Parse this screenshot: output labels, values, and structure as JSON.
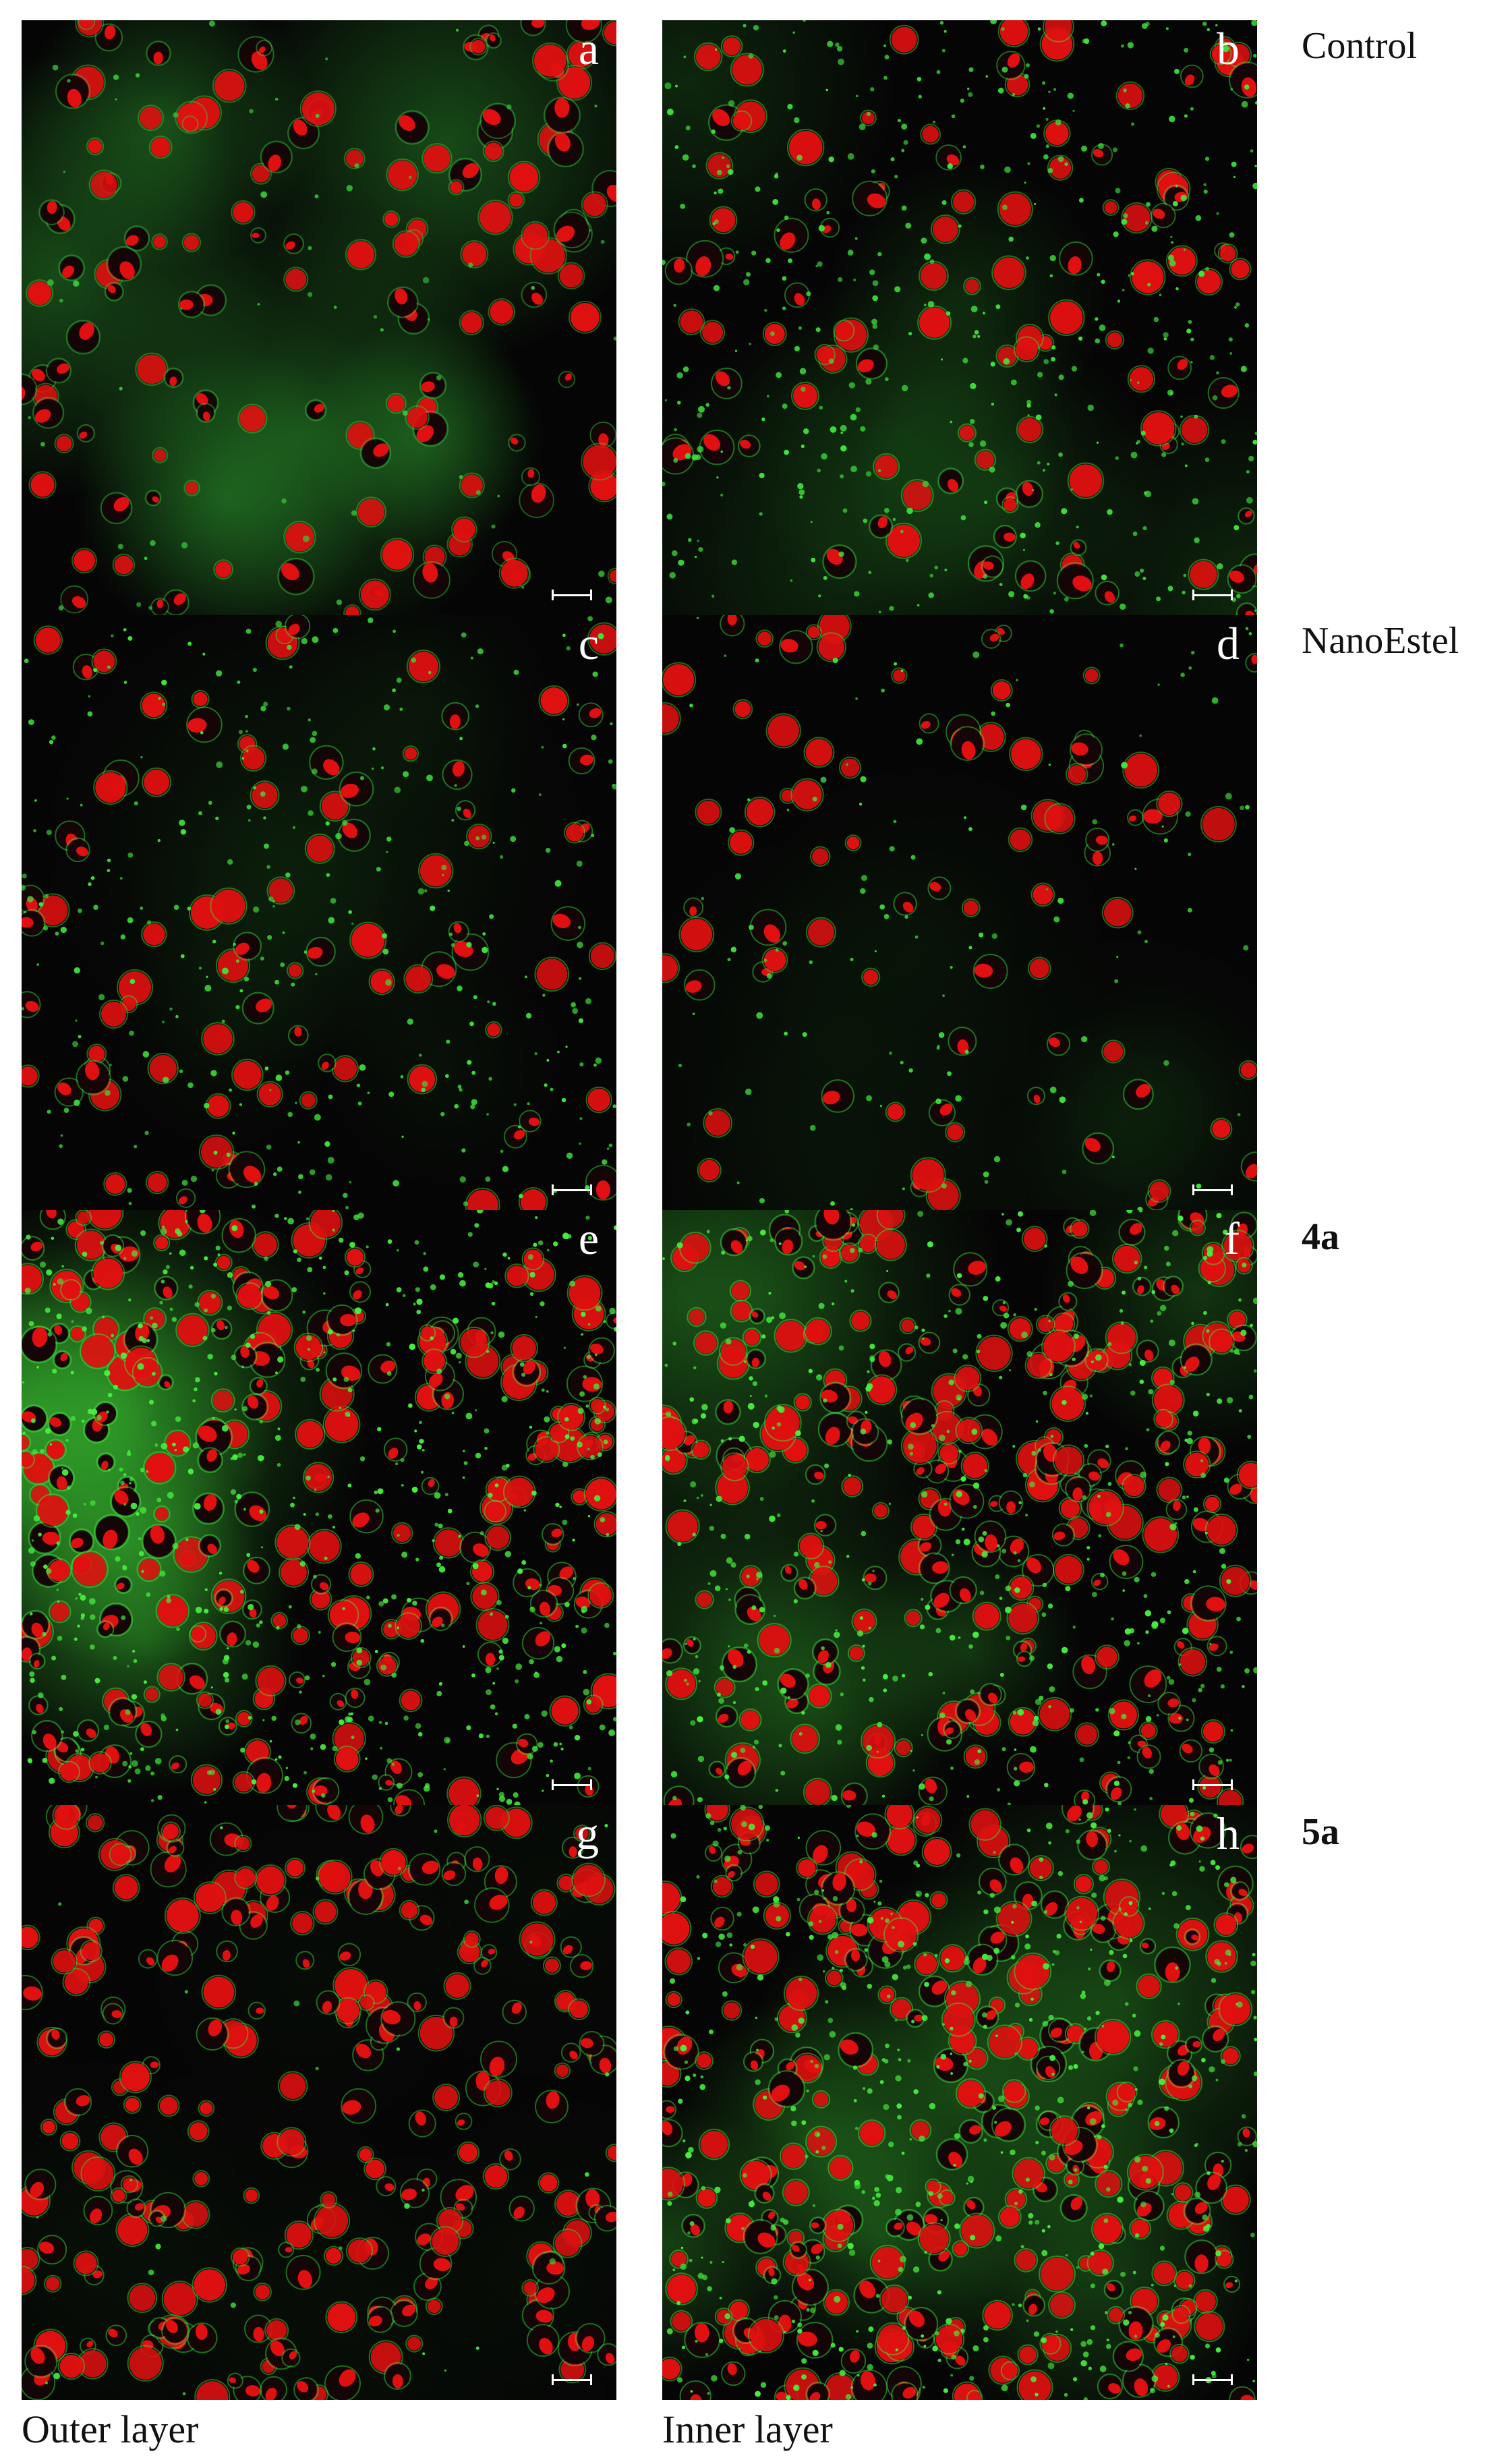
{
  "panels": [
    {
      "letter": "a",
      "green": "#39c93a",
      "red_cells": 140,
      "green_dots": 60,
      "haze": 0.35
    },
    {
      "letter": "b",
      "green": "#3ee63a",
      "red_cells": 110,
      "green_dots": 420,
      "haze": 0.15
    },
    {
      "letter": "c",
      "green": "#3ee63a",
      "red_cells": 90,
      "green_dots": 320,
      "haze": 0.05
    },
    {
      "letter": "d",
      "green": "#3ee63a",
      "red_cells": 80,
      "green_dots": 120,
      "haze": 0.05
    },
    {
      "letter": "e",
      "green": "#46f03c",
      "red_cells": 260,
      "green_dots": 600,
      "haze": 0.3
    },
    {
      "letter": "f",
      "green": "#46f03c",
      "red_cells": 280,
      "green_dots": 450,
      "haze": 0.2
    },
    {
      "letter": "g",
      "green": "#3ee63a",
      "red_cells": 260,
      "green_dots": 30,
      "haze": 0.03
    },
    {
      "letter": "h",
      "green": "#46f03c",
      "red_cells": 320,
      "green_dots": 520,
      "haze": 0.25
    }
  ],
  "row_labels": [
    "Control",
    "NanoEstel",
    "4a",
    "5a"
  ],
  "column_labels": [
    "Outer layer",
    "Inner layer"
  ],
  "colors": {
    "red": "#e01010",
    "background": "#050505",
    "label": "#ffffff"
  }
}
